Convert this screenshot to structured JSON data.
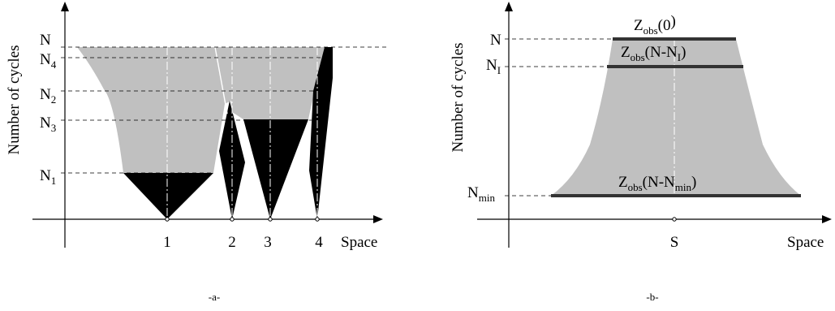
{
  "panel_a": {
    "caption": "-a-",
    "ylabel": "Number of cycles",
    "xlabel": "Space",
    "levels": [
      {
        "base": "N",
        "sub": ""
      },
      {
        "base": "N",
        "sub": "4"
      },
      {
        "base": "N",
        "sub": "2"
      },
      {
        "base": "N",
        "sub": "3"
      },
      {
        "base": "N",
        "sub": "1"
      }
    ],
    "positions": [
      "1",
      "2",
      "3",
      "4"
    ]
  },
  "panel_b": {
    "caption": "-b-",
    "ylabel": "Number of cycles",
    "xlabel": "Space",
    "levels": [
      {
        "base": "N",
        "sub": ""
      },
      {
        "base": "N",
        "sub": "I"
      },
      {
        "base": "N",
        "sub": "min"
      }
    ],
    "position": "S",
    "bars": [
      {
        "base": "Z",
        "sub": "obs",
        "arg_open": "(",
        "arg": "0",
        "arg_sub": "",
        "arg_close": ")"
      },
      {
        "base": "Z",
        "sub": "obs",
        "arg_open": "(",
        "arg": "N-N",
        "arg_sub": "I",
        "arg_close": ")"
      },
      {
        "base": "Z",
        "sub": "obs",
        "arg_open": "(",
        "arg": "N-N",
        "arg_sub": "min",
        "arg_close": ")"
      }
    ]
  },
  "colors": {
    "fill_gray": "#c0c0c0",
    "fill_black": "#000000"
  }
}
